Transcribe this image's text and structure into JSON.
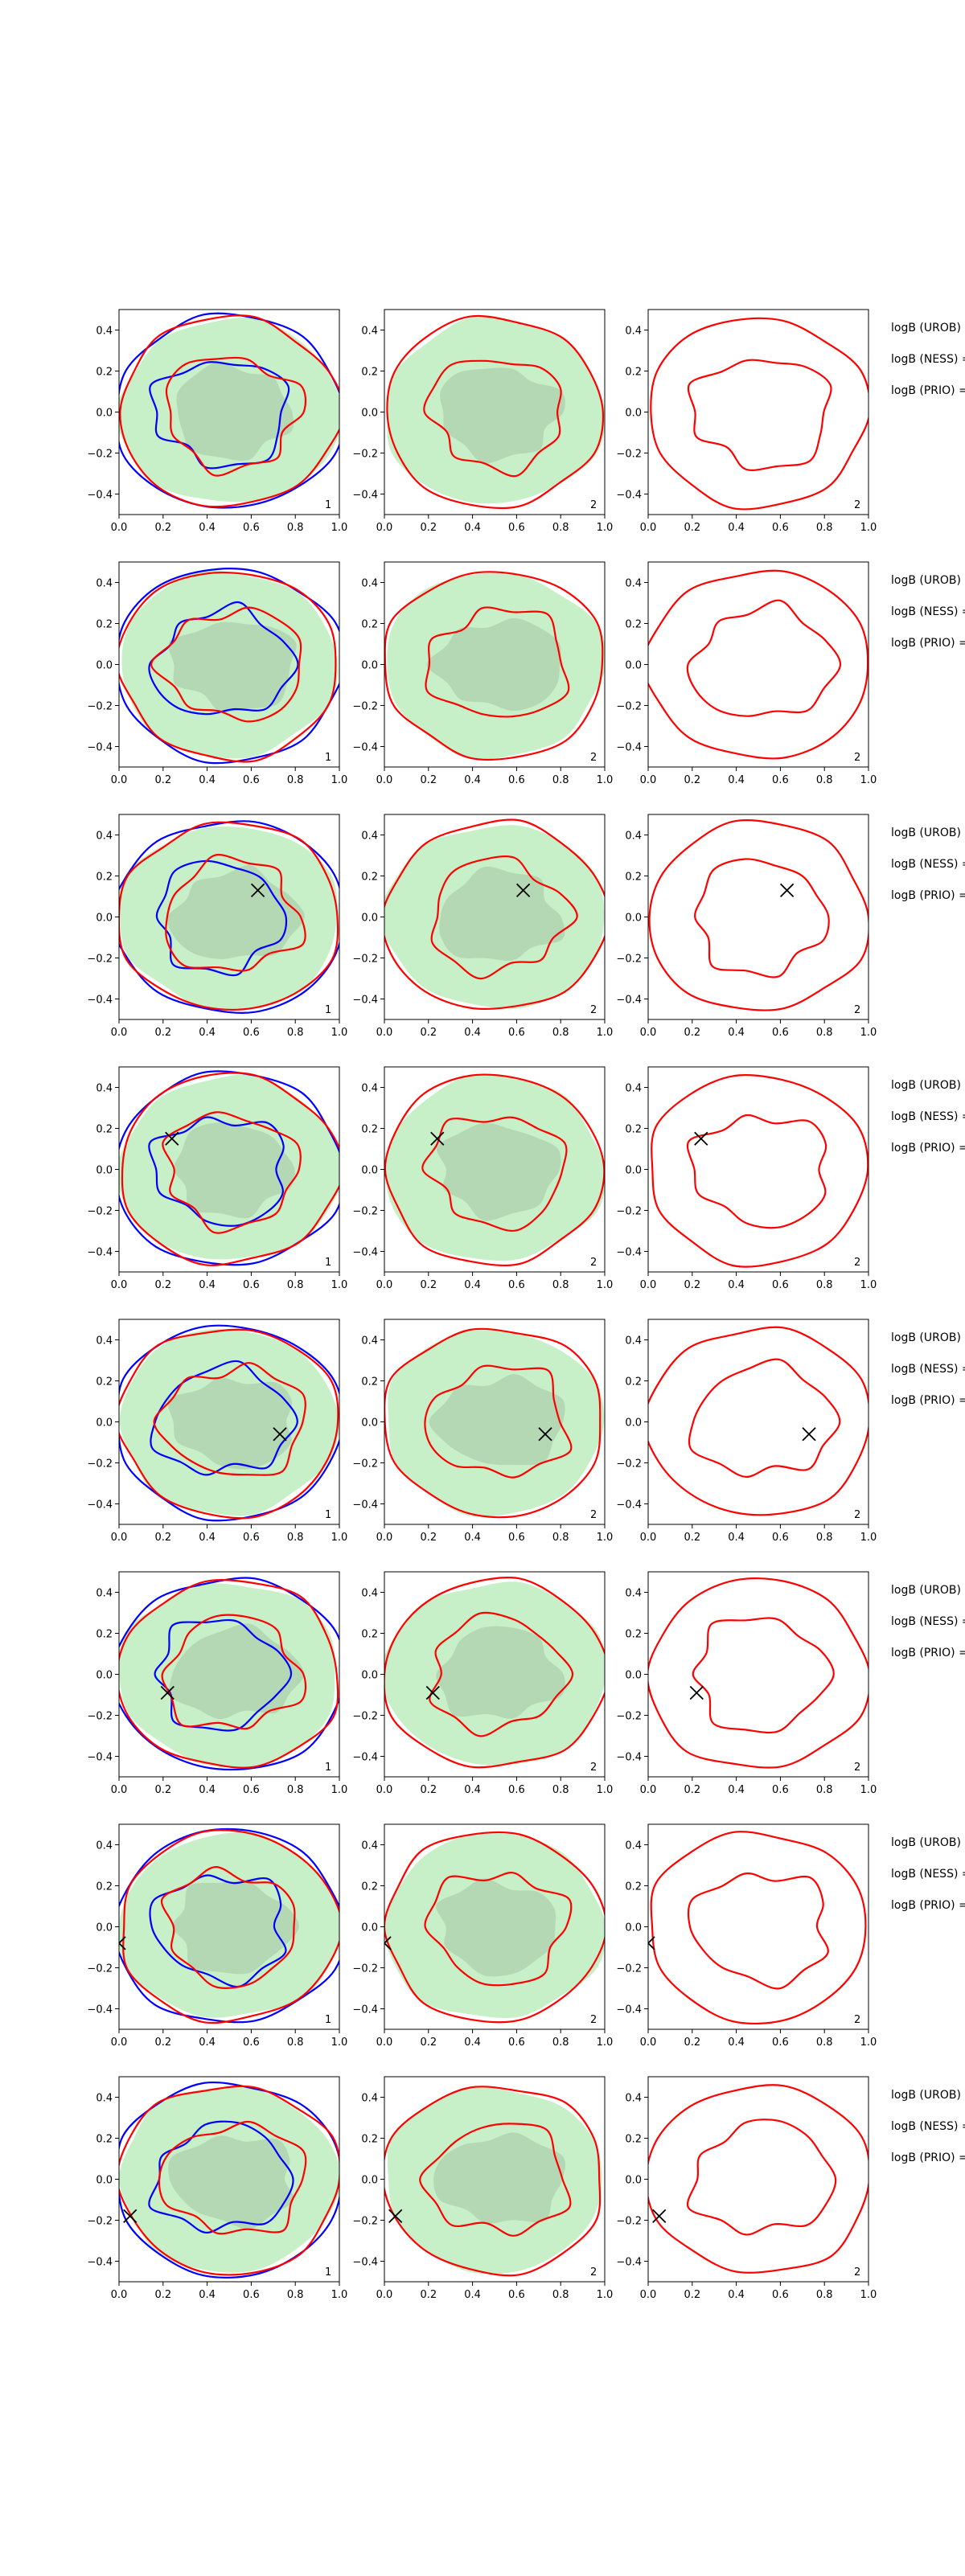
{
  "chart_data": {
    "type": "contour-grid",
    "xlim": [
      0.0,
      1.0
    ],
    "ylim": [
      -0.5,
      0.5
    ],
    "x_ticks": [
      "0.0",
      "0.2",
      "0.4",
      "0.6",
      "0.8",
      "1.0"
    ],
    "y_ticks": [
      "0.4",
      "0.2",
      "0.0",
      "−0.2",
      "−0.4"
    ],
    "y_tick_values": [
      0.4,
      0.2,
      0.0,
      -0.2,
      -0.4
    ],
    "x_tick_values": [
      0.0,
      0.2,
      0.4,
      0.6,
      0.8,
      1.0
    ],
    "panel_labels": [
      "1",
      "2",
      "2"
    ],
    "side_labels": [
      "logB (UROB) =",
      "logB (NESS) =",
      "logB (PRIO) ="
    ],
    "colors": {
      "red_contour": "#ff0000",
      "blue_contour": "#0000ff",
      "fill_outer": "#c8f0c8",
      "fill_inner": "#b4d8b4",
      "marker": "#000000"
    },
    "rows": [
      {
        "marker": null
      },
      {
        "marker": null
      },
      {
        "marker": [
          0.63,
          0.13
        ]
      },
      {
        "marker": [
          0.24,
          0.15
        ]
      },
      {
        "marker": [
          0.73,
          -0.06
        ]
      },
      {
        "marker": [
          0.22,
          -0.09
        ]
      },
      {
        "marker": [
          0.0,
          -0.08
        ]
      },
      {
        "marker": [
          0.05,
          -0.18
        ]
      }
    ]
  }
}
